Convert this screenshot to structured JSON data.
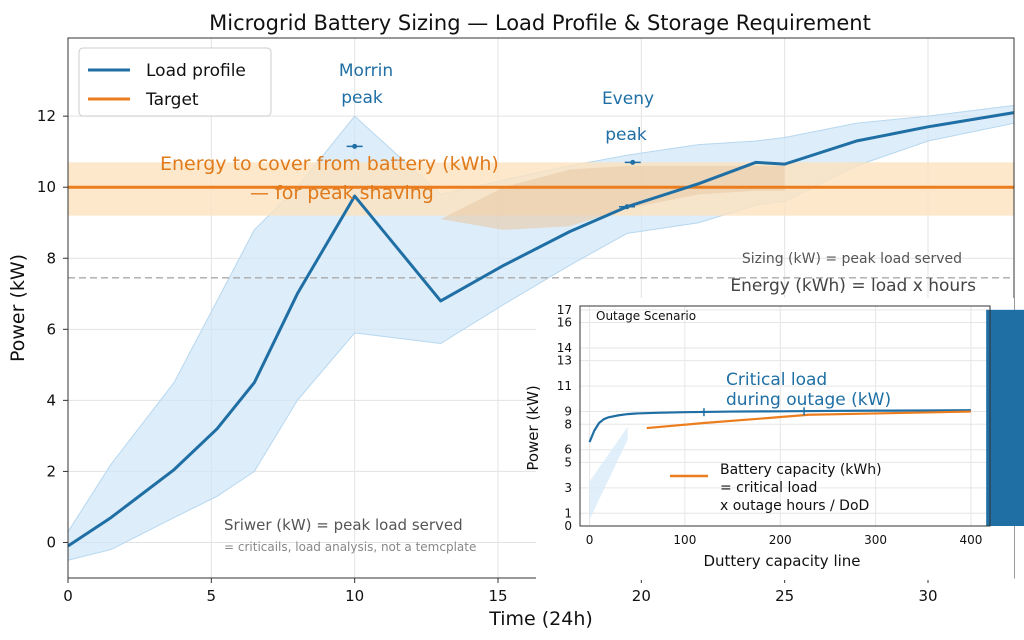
{
  "chart_data": [
    {
      "type": "line",
      "title": "Microgrid Battery Sizing — Load Profile & Storage Requirement",
      "xlabel": "Time (24h)",
      "ylabel": "Power (kW)",
      "xlim": [
        0,
        33
      ],
      "ylim": [
        -1,
        14.2
      ],
      "x_ticks": [
        0,
        5,
        10,
        15,
        20,
        25,
        30
      ],
      "y_ticks": [
        0,
        2,
        4,
        6,
        8,
        10,
        12
      ],
      "grid": true,
      "legend": {
        "position": "top-left",
        "entries": [
          "Load profile",
          "Target"
        ]
      },
      "series": [
        {
          "name": "Load profile",
          "color": "#1f6fa5",
          "x": [
            0,
            1.5,
            3.7,
            5.2,
            6.5,
            8.0,
            10.0,
            13.0,
            15.2,
            17.5,
            19.5,
            22.0,
            24.0,
            25.0,
            27.5,
            30.0,
            33.0
          ],
          "y": [
            -0.1,
            0.7,
            2.05,
            3.2,
            4.5,
            7.0,
            9.75,
            6.8,
            7.8,
            8.75,
            9.45,
            10.1,
            10.7,
            10.65,
            11.3,
            11.7,
            12.1
          ],
          "band_upper": [
            0.3,
            2.2,
            4.5,
            6.8,
            8.8,
            10.0,
            12.0,
            9.8,
            10.2,
            10.6,
            10.9,
            11.2,
            11.3,
            11.4,
            11.8,
            12.0,
            12.3
          ],
          "band_lower": [
            -0.5,
            -0.2,
            0.7,
            1.3,
            2.0,
            4.0,
            5.9,
            5.6,
            6.7,
            7.8,
            8.7,
            9.0,
            9.5,
            9.6,
            10.6,
            11.3,
            11.8
          ]
        },
        {
          "name": "Target",
          "color": "#ec7d1e",
          "x": [
            0,
            33
          ],
          "y": [
            10,
            10
          ]
        }
      ],
      "target_band": [
        9.2,
        10.7
      ],
      "reference_line": 7.45,
      "shaded_region": {
        "x": [
          13,
          15.2,
          17.5,
          19.5,
          22.0,
          24.0,
          25.0
        ],
        "upper": [
          9.1,
          10.0,
          10.5,
          10.6,
          10.6,
          10.6,
          10.6
        ],
        "lower": [
          9.1,
          8.8,
          8.9,
          9.4,
          9.8,
          9.9,
          9.9
        ]
      },
      "markers": [
        {
          "x": 10.0,
          "y": 11.15
        },
        {
          "x": 19.7,
          "y": 10.7
        },
        {
          "x": 19.5,
          "y": 9.45
        }
      ],
      "annotations": {
        "morning_line1": "Morrin",
        "morning_line2": "peak",
        "evening_line1": "Eveny",
        "evening_line2": "peak",
        "energy_line1": "Energy to cover from battery (kWh)",
        "energy_line2": "— for peak shaving",
        "sizing_note": "Sizing (kW) = peak load served",
        "energy_note": "Energy (kWh) = load x hours",
        "sriwer_note": "Sriwer (kW) = peak load served",
        "criticals_note": "= criticails, load analysis, not a temcplate"
      }
    },
    {
      "type": "line",
      "title": "Outage Scenario",
      "xlabel": "Duttery capacity line",
      "ylabel": "Power (kW)",
      "xlim": [
        -10,
        420
      ],
      "ylim": [
        0,
        17.3
      ],
      "x_ticks": [
        0,
        100,
        200,
        300,
        400
      ],
      "y_ticks": [
        0,
        1,
        3,
        5,
        6,
        8,
        9,
        11,
        13,
        14,
        16,
        17
      ],
      "grid": true,
      "series": [
        {
          "name": "Critical load during outage (kW)",
          "color": "#1f6fa5",
          "x": [
            0,
            5,
            10,
            15,
            20,
            30,
            40,
            50,
            70,
            100,
            150,
            200,
            250,
            300,
            350,
            400
          ],
          "y": [
            6.6,
            7.5,
            8.1,
            8.4,
            8.55,
            8.7,
            8.8,
            8.85,
            8.9,
            8.95,
            9.0,
            9.02,
            9.05,
            9.07,
            9.08,
            9.1
          ]
        },
        {
          "name": "Battery capacity (kWh) = critical load x outage hours / DoD",
          "color": "#ec7d1e",
          "x": [
            60,
            120,
            180,
            230,
            300,
            400
          ],
          "y": [
            7.7,
            8.1,
            8.45,
            8.75,
            8.85,
            9.0
          ]
        }
      ],
      "bar": {
        "x_start": 416,
        "x_end": 480,
        "value": 17,
        "color": "#1f6fa5"
      },
      "markers": [
        {
          "x": 120,
          "y": 8.95
        },
        {
          "x": 225,
          "y": 9.02
        }
      ],
      "annotations": {
        "critical_line1": "Critical load",
        "critical_line2": "during outage (kW)",
        "battery_line1": "Battery capacity (kWh)",
        "battery_line2": "= critical load",
        "battery_line3": "x outage hours / DoD"
      }
    }
  ]
}
